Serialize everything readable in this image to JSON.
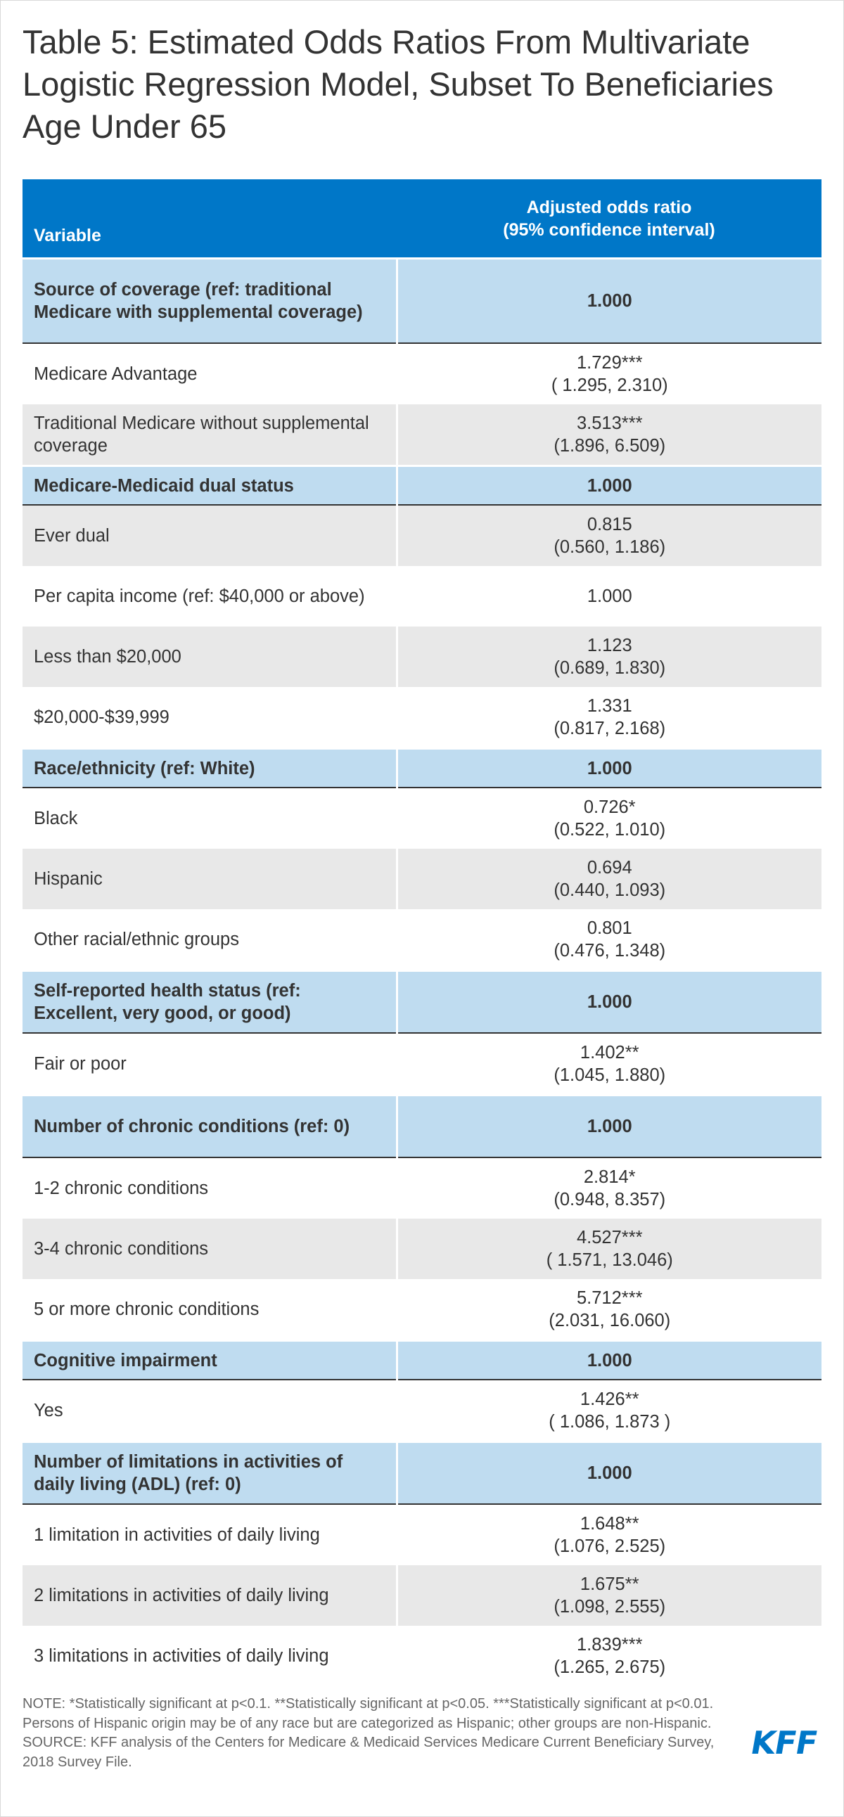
{
  "title": "Table 5: Estimated Odds Ratios From Multivariate Logistic Regression Model, Subset To Beneficiaries Age Under 65",
  "table": {
    "header": {
      "variable": "Variable",
      "value_line1": "Adjusted odds ratio",
      "value_line2": "(95% confidence interval)"
    },
    "rows": [
      {
        "type": "head",
        "label": "Source of coverage (ref: traditional Medicare with supplemental coverage)",
        "value": "1.000",
        "ci": ""
      },
      {
        "type": "white",
        "label": "Medicare Advantage",
        "value": "1.729***",
        "ci": "( 1.295, 2.310)"
      },
      {
        "type": "grey",
        "label": "Traditional Medicare without supplemental coverage",
        "value": "3.513***",
        "ci": "(1.896, 6.509)"
      },
      {
        "type": "head",
        "label": "Medicare-Medicaid dual status",
        "value": "1.000",
        "ci": ""
      },
      {
        "type": "grey",
        "label": "Ever dual",
        "value": "0.815",
        "ci": "(0.560, 1.186)"
      },
      {
        "type": "white",
        "label": "Per capita income (ref: $40,000 or above)",
        "value": "1.000",
        "ci": ""
      },
      {
        "type": "grey",
        "label": "Less than $20,000",
        "value": "1.123",
        "ci": "(0.689, 1.830)"
      },
      {
        "type": "white",
        "label": "$20,000-$39,999",
        "value": "1.331",
        "ci": "(0.817, 2.168)"
      },
      {
        "type": "head",
        "label": "Race/ethnicity (ref: White)",
        "value": "1.000",
        "ci": ""
      },
      {
        "type": "white",
        "label": "Black",
        "value": "0.726*",
        "ci": "(0.522, 1.010)"
      },
      {
        "type": "grey",
        "label": "Hispanic",
        "value": "0.694",
        "ci": "(0.440, 1.093)"
      },
      {
        "type": "white",
        "label": "Other racial/ethnic groups",
        "value": "0.801",
        "ci": "(0.476, 1.348)"
      },
      {
        "type": "head",
        "label": "Self-reported health status (ref: Excellent, very good, or good)",
        "value": "1.000",
        "ci": ""
      },
      {
        "type": "white",
        "label": "Fair or poor",
        "value": "1.402**",
        "ci": "(1.045, 1.880)"
      },
      {
        "type": "head",
        "label": "Number of chronic conditions (ref: 0)",
        "value": "1.000",
        "ci": ""
      },
      {
        "type": "white",
        "label": "1-2 chronic conditions",
        "value": "2.814*",
        "ci": "(0.948, 8.357)"
      },
      {
        "type": "grey",
        "label": "3-4 chronic conditions",
        "value": "4.527***",
        "ci": "( 1.571, 13.046)"
      },
      {
        "type": "white",
        "label": "5 or more chronic conditions",
        "value": "5.712***",
        "ci": "(2.031, 16.060)"
      },
      {
        "type": "head",
        "label": "Cognitive impairment",
        "value": "1.000",
        "ci": ""
      },
      {
        "type": "white",
        "label": "Yes",
        "value": "1.426**",
        "ci": "( 1.086, 1.873 )"
      },
      {
        "type": "head",
        "label": "Number of limitations in activities of daily living (ADL) (ref: 0)",
        "value": "1.000",
        "ci": ""
      },
      {
        "type": "white",
        "label": "1 limitation in activities of daily living",
        "value": "1.648**",
        "ci": "(1.076, 2.525)"
      },
      {
        "type": "grey",
        "label": "2 limitations in activities of daily living",
        "value": "1.675**",
        "ci": "(1.098, 2.555)"
      },
      {
        "type": "white",
        "label": "3 limitations in activities of daily living",
        "value": "1.839***",
        "ci": "(1.265, 2.675)"
      }
    ]
  },
  "notes": {
    "note": "NOTE: *Statistically significant at p<0.1. **Statistically significant at p<0.05. ***Statistically significant at p<0.01. Persons of Hispanic origin may be of any race but are categorized as Hispanic; other groups are non-Hispanic.",
    "source": "SOURCE: KFF analysis of the Centers for Medicare & Medicaid Services Medicare Current Beneficiary Survey, 2018 Survey File."
  },
  "logo": {
    "text": "KFF",
    "color": "#0077c8"
  },
  "colors": {
    "header_blue": "#0077c8",
    "section_light_blue": "#bfdcf0",
    "zebra_grey": "#e8e8e8"
  }
}
